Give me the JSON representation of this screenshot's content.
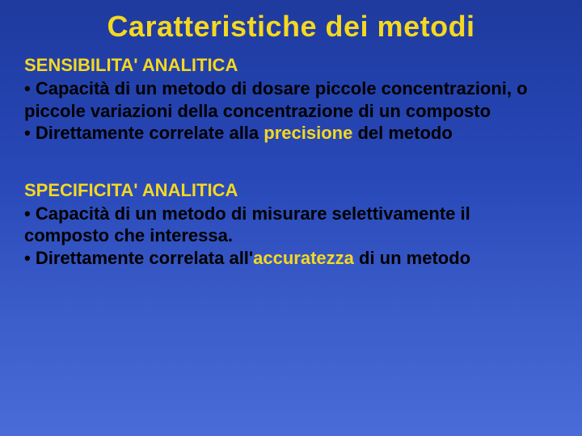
{
  "colors": {
    "background_gradient_top": "#1e3a9e",
    "background_gradient_bottom": "#4a6cd8",
    "title_color": "#f5d820",
    "heading_color": "#f5d820",
    "body_color": "#000000",
    "highlight_color": "#f5d820"
  },
  "typography": {
    "title_fontsize": 36,
    "heading_fontsize": 22,
    "body_fontsize": 22,
    "font_family": "Verdana",
    "weight": "bold"
  },
  "title": "Caratteristiche dei metodi",
  "section1": {
    "heading": "SENSIBILITA' ANALITICA",
    "bullet1_text": "• Capacità di un metodo di dosare piccole concentrazioni, o piccole variazioni della concentrazione di un composto",
    "bullet2_prefix": "• Direttamente correlate alla ",
    "bullet2_highlight": "precisione",
    "bullet2_suffix": " del metodo"
  },
  "section2": {
    "heading": "SPECIFICITA' ANALITICA",
    "bullet1_text": "• Capacità di un metodo di misurare selettivamente il composto che interessa.",
    "bullet2_prefix": "• Direttamente  correlata all'",
    "bullet2_highlight": "accuratezza",
    "bullet2_suffix": " di un metodo"
  }
}
